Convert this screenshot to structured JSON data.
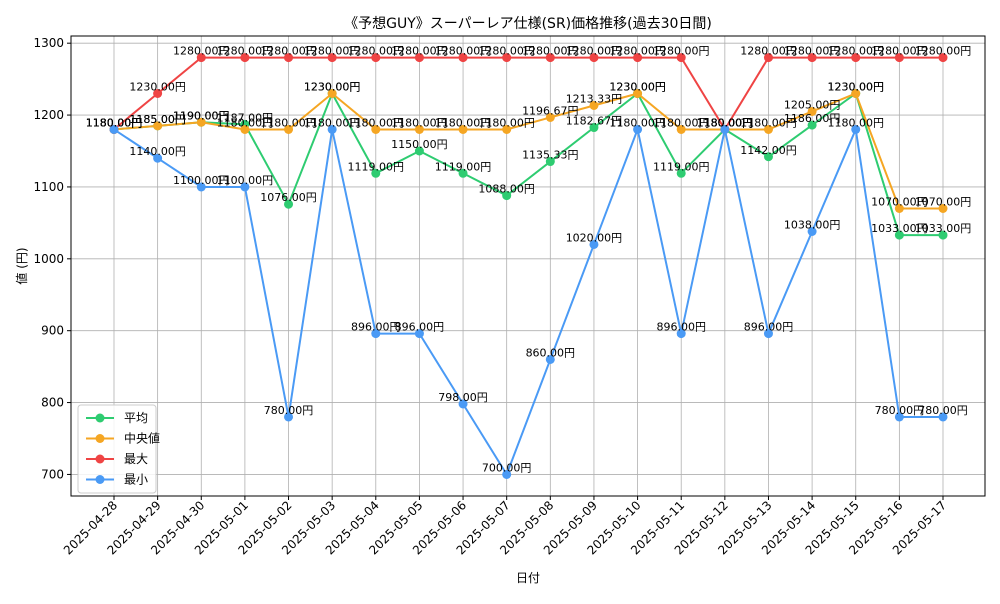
{
  "chart_data": {
    "type": "line",
    "title": "《予想GUY》スーパーレア仕様(SR)価格推移(過去30日間)",
    "xlabel": "日付",
    "ylabel": "値 (円)",
    "ylim": [
      670,
      1310
    ],
    "yticks": [
      700,
      800,
      900,
      1000,
      1100,
      1200,
      1300
    ],
    "grid": true,
    "legend_position": "bottom-left",
    "categories": [
      "2025-04-28",
      "2025-04-29",
      "2025-04-30",
      "2025-05-01",
      "2025-05-02",
      "2025-05-03",
      "2025-05-04",
      "2025-05-05",
      "2025-05-06",
      "2025-05-07",
      "2025-05-08",
      "2025-05-09",
      "2025-05-10",
      "2025-05-11",
      "2025-05-12",
      "2025-05-13",
      "2025-05-14",
      "2025-05-15",
      "2025-05-16",
      "2025-05-17"
    ],
    "series": [
      {
        "name": "平均",
        "color": "#2ecc71",
        "values": [
          1180,
          1185,
          1190,
          1187,
          1076,
          1230,
          1119,
          1150,
          1119,
          1088,
          1135.33,
          1182.67,
          1230,
          1119,
          1180,
          1142,
          1186,
          1230,
          1033,
          1033
        ],
        "labels": [
          "1180.00円",
          "1185.00円",
          "1190.00円",
          "1187.00円",
          "1076.00円",
          "1230.00円",
          "1119.00円",
          "1150.00円",
          "1119.00円",
          "1088.00円",
          "1135.33円",
          "1182.67円",
          "1230.00円",
          "1119.00円",
          "1180.00円",
          "1142.00円",
          "1186.00円",
          "1230.00円",
          "1033.00円",
          "1033.00円"
        ]
      },
      {
        "name": "中央値",
        "color": "#f5a623",
        "values": [
          1180,
          1185,
          1190,
          1180,
          1180,
          1230,
          1180,
          1180,
          1180,
          1180,
          1196.67,
          1213.33,
          1230,
          1180,
          1180,
          1180,
          1205,
          1230,
          1070,
          1070
        ],
        "labels": [
          "1180.00円",
          "1185.00円",
          "1190.00円",
          "1180.00円",
          "1180.00円",
          "1230.00円",
          "1180.00円",
          "1180.00円",
          "1180.00円",
          "1180.00円",
          "1196.67円",
          "1213.33円",
          "1230.00円",
          "1180.00円",
          "1180.00円",
          "1180.00円",
          "1205.00円",
          "1230.00円",
          "1070.00円",
          "1070.00円"
        ]
      },
      {
        "name": "最大",
        "color": "#ef4444",
        "values": [
          1180,
          1230,
          1280,
          1280,
          1280,
          1280,
          1280,
          1280,
          1280,
          1280,
          1280,
          1280,
          1280,
          1280,
          1180,
          1280,
          1280,
          1280,
          1280,
          1280
        ],
        "labels": [
          "1180.00円",
          "1230.00円",
          "1280.00円",
          "1280.00円",
          "1280.00円",
          "1280.00円",
          "1280.00円",
          "1280.00円",
          "1280.00円",
          "1280.00円",
          "1280.00円",
          "1280.00円",
          "1280.00円",
          "1280.00円",
          "1180.00円",
          "1280.00円",
          "1280.00円",
          "1280.00円",
          "1280.00円",
          "1280.00円"
        ]
      },
      {
        "name": "最小",
        "color": "#4a9af5",
        "values": [
          1180,
          1140,
          1100,
          1100,
          780,
          1180,
          896,
          896,
          798,
          700,
          860,
          1020,
          1180,
          896,
          1180,
          896,
          1038,
          1180,
          780,
          780
        ],
        "labels": [
          "1180.00円",
          "1140.00円",
          "1100.00円",
          "1100.00円",
          "780.00円",
          "1180.00円",
          "896.00円",
          "896.00円",
          "798.00円",
          "700.00円",
          "860.00円",
          "1020.00円",
          "1180.00円",
          "896.00円",
          "1180.00円",
          "896.00円",
          "1038.00円",
          "1180.00円",
          "780.00円",
          "780.00円"
        ]
      }
    ]
  }
}
